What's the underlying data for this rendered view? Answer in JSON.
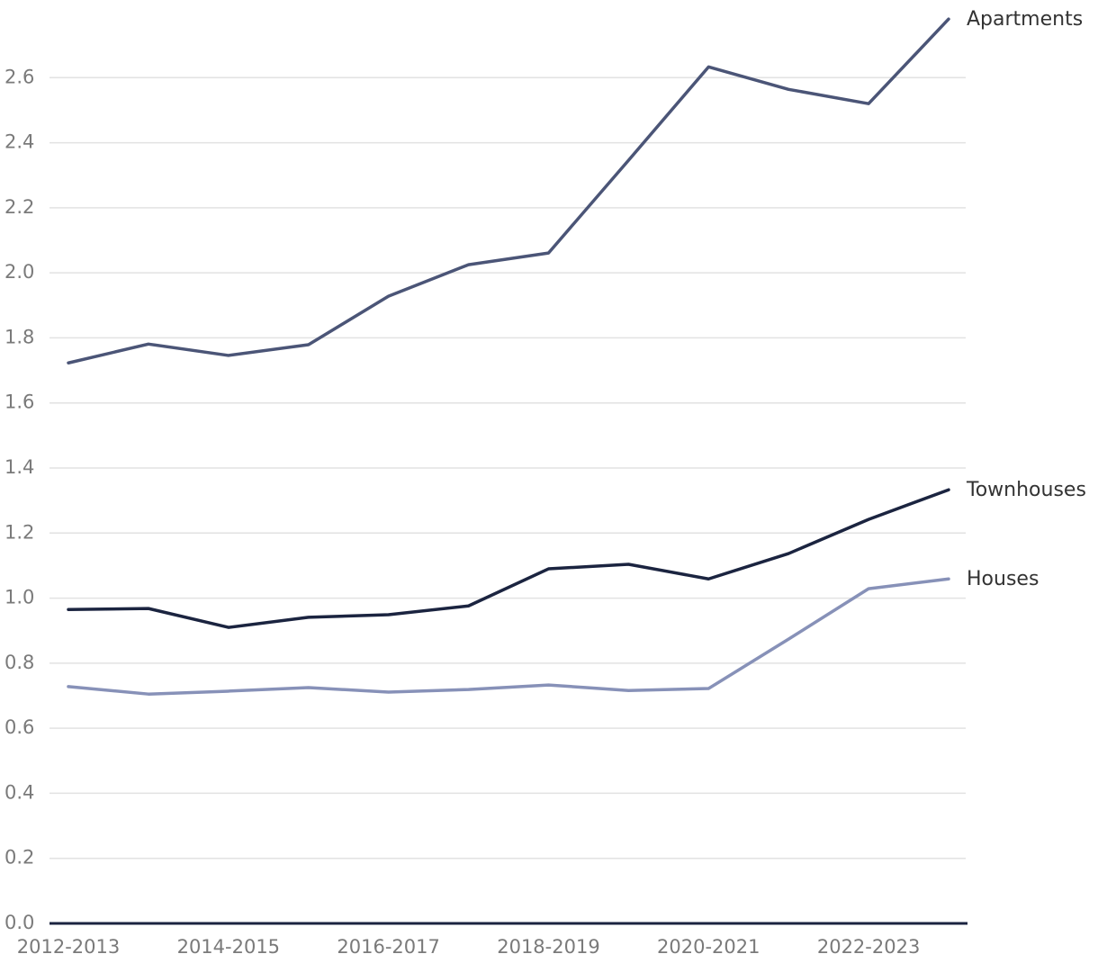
{
  "chart_data": {
    "type": "line",
    "categories": [
      "2012-2013",
      null,
      "2014-2015",
      null,
      "2016-2017",
      null,
      "2018-2019",
      null,
      "2020-2021",
      null,
      "2022-2023",
      null
    ],
    "series": [
      {
        "name": "Apartments",
        "color": "#4b5577",
        "values": [
          1.723,
          1.781,
          1.746,
          1.779,
          1.928,
          2.025,
          2.061,
          2.346,
          2.633,
          2.564,
          2.52,
          2.78
        ]
      },
      {
        "name": "Townhouses",
        "color": "#1b2440",
        "values": [
          0.965,
          0.968,
          0.91,
          0.941,
          0.949,
          0.976,
          1.09,
          1.104,
          1.059,
          1.137,
          1.242,
          1.333
        ]
      },
      {
        "name": "Houses",
        "color": "#8791b8",
        "values": [
          0.728,
          0.705,
          0.714,
          0.725,
          0.711,
          0.719,
          0.733,
          0.716,
          0.722,
          0.874,
          1.029,
          1.059
        ]
      }
    ],
    "ylim": [
      0,
      2.8
    ],
    "yticks": [
      {
        "value": 0,
        "label": "0.0"
      },
      0.2,
      0.4,
      0.6,
      0.8,
      {
        "value": 1,
        "label": "1.0"
      },
      1.2,
      1.4,
      1.6,
      1.8,
      {
        "value": 2,
        "label": "2.0"
      },
      2.2,
      2.4,
      2.6
    ],
    "grid": true
  }
}
